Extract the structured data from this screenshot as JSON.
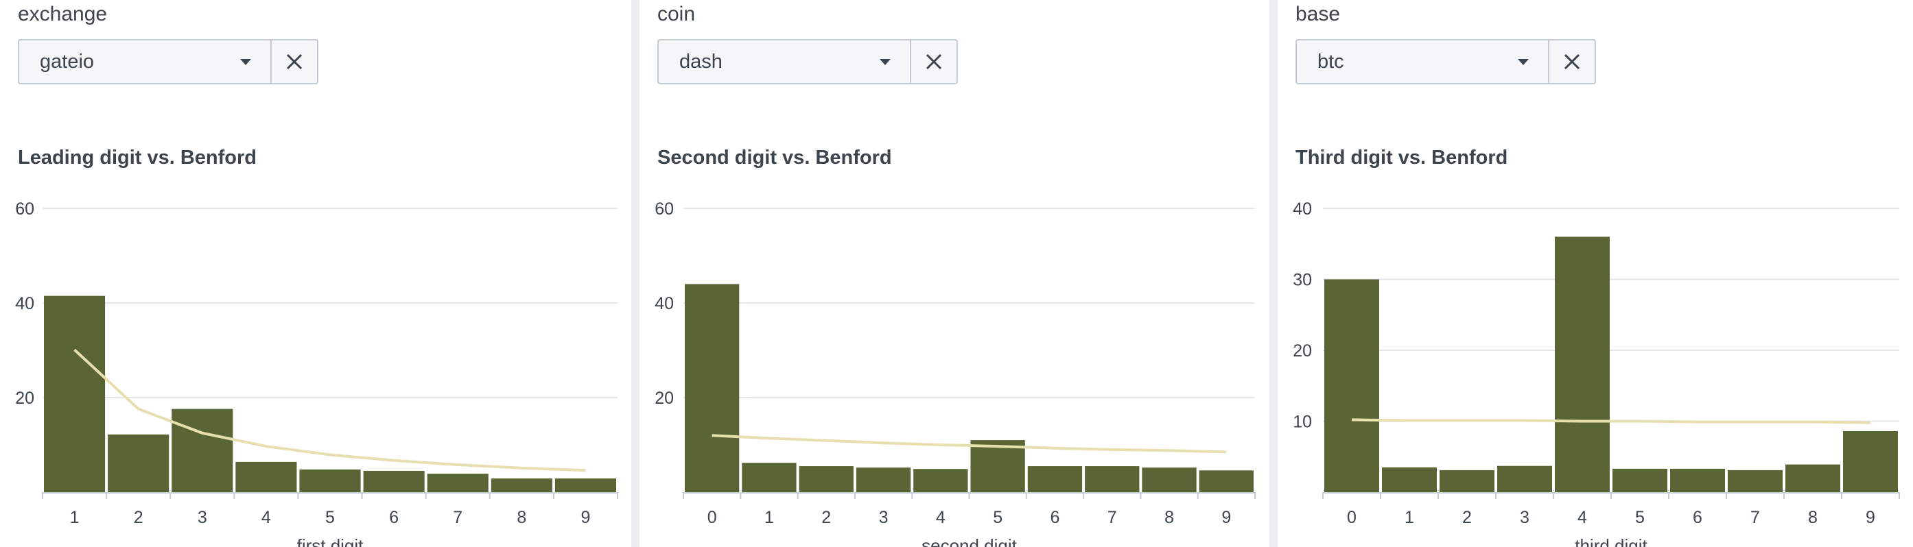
{
  "panels": [
    {
      "filter": {
        "label": "exchange",
        "value": "gateio"
      },
      "title": "Leading digit vs. Benford"
    },
    {
      "filter": {
        "label": "coin",
        "value": "dash"
      },
      "title": "Second digit vs. Benford"
    },
    {
      "filter": {
        "label": "base",
        "value": "btc"
      },
      "title": "Third digit vs. Benford"
    }
  ],
  "colors": {
    "bar": "#5a6535",
    "line": "#e8dfb0",
    "grid": "#e3e6ea",
    "axis": "#c3cbd4"
  },
  "chart_data": [
    {
      "type": "bar",
      "title": "Leading digit vs. Benford",
      "xlabel": "first digit",
      "ylabel": "",
      "categories": [
        "1",
        "2",
        "3",
        "4",
        "5",
        "6",
        "7",
        "8",
        "9"
      ],
      "series": [
        {
          "type": "bar",
          "values": [
            41.5,
            12.2,
            17.6,
            6.4,
            4.8,
            4.5,
            3.9,
            2.9,
            2.9
          ]
        },
        {
          "type": "line",
          "values": [
            30.1,
            17.6,
            12.5,
            9.7,
            7.9,
            6.7,
            5.8,
            5.1,
            4.6
          ]
        }
      ],
      "ylim": [
        0,
        60
      ],
      "yticks": [
        20,
        40,
        60
      ],
      "grid": true,
      "legend": "none"
    },
    {
      "type": "bar",
      "title": "Second digit vs. Benford",
      "xlabel": "second digit",
      "ylabel": "",
      "categories": [
        "0",
        "1",
        "2",
        "3",
        "4",
        "5",
        "6",
        "7",
        "8",
        "9"
      ],
      "series": [
        {
          "type": "bar",
          "values": [
            44.0,
            6.2,
            5.5,
            5.2,
            4.9,
            11.0,
            5.5,
            5.5,
            5.2,
            4.6
          ]
        },
        {
          "type": "line",
          "values": [
            12.0,
            11.4,
            10.9,
            10.4,
            10.0,
            9.7,
            9.3,
            9.0,
            8.8,
            8.5
          ]
        }
      ],
      "ylim": [
        0,
        60
      ],
      "yticks": [
        20,
        40,
        60
      ],
      "grid": true,
      "legend": "none"
    },
    {
      "type": "bar",
      "title": "Third digit vs. Benford",
      "xlabel": "third digit",
      "ylabel": "",
      "categories": [
        "0",
        "1",
        "2",
        "3",
        "4",
        "5",
        "6",
        "7",
        "8",
        "9"
      ],
      "series": [
        {
          "type": "bar",
          "values": [
            30.0,
            3.5,
            3.1,
            3.7,
            36.0,
            3.3,
            3.3,
            3.1,
            3.9,
            8.6
          ]
        },
        {
          "type": "line",
          "values": [
            10.2,
            10.1,
            10.1,
            10.1,
            10.0,
            10.0,
            9.9,
            9.9,
            9.9,
            9.8
          ]
        }
      ],
      "ylim": [
        0,
        40
      ],
      "yticks": [
        10,
        20,
        30,
        40
      ],
      "grid": true,
      "legend": "none"
    }
  ]
}
